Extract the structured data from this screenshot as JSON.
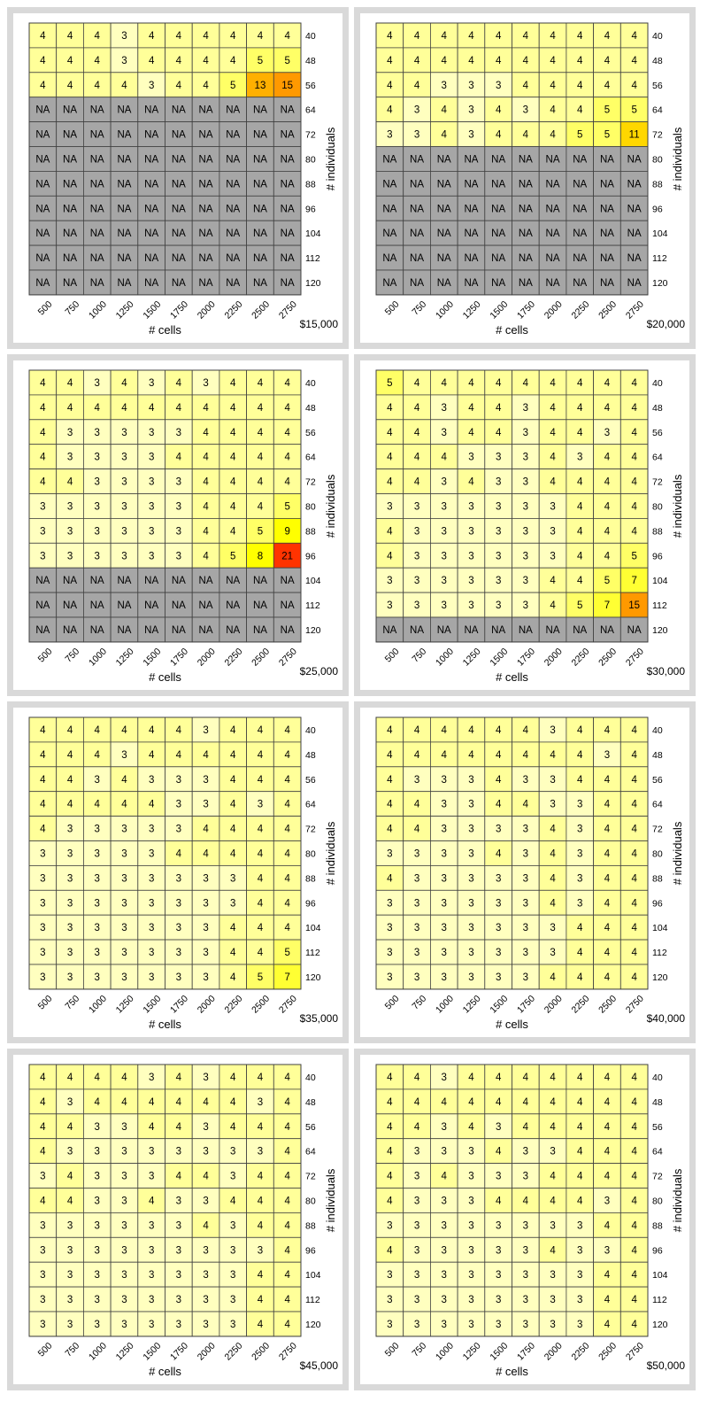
{
  "shared": {
    "x_label": "# cells",
    "y_label": "# individuals",
    "x_ticks": [
      "500",
      "750",
      "1000",
      "1250",
      "1500",
      "1750",
      "2000",
      "2250",
      "2500",
      "2750"
    ],
    "y_ticks": [
      "40",
      "48",
      "56",
      "64",
      "72",
      "80",
      "88",
      "96",
      "104",
      "112",
      "120"
    ],
    "colors": {
      "na": "#a6a6a6",
      "scale_3": "#ffffbf",
      "scale_4": "#ffff99",
      "scale_5": "#ffff66",
      "scale_7": "#ffff33",
      "scale_9": "#ffff00",
      "scale_11": "#ffd700",
      "scale_13": "#ffb000",
      "scale_15": "#ff9900",
      "scale_21": "#ff3300",
      "grid": "#404040"
    }
  },
  "chart_data": [
    {
      "type": "heatmap",
      "budget": "$15,000",
      "rows": [
        [
          "4",
          "4",
          "4",
          "3",
          "4",
          "4",
          "4",
          "4",
          "4",
          "4"
        ],
        [
          "4",
          "4",
          "4",
          "3",
          "4",
          "4",
          "4",
          "4",
          "5",
          "5"
        ],
        [
          "4",
          "4",
          "4",
          "4",
          "3",
          "4",
          "4",
          "5",
          "13",
          "15"
        ],
        [
          "NA",
          "NA",
          "NA",
          "NA",
          "NA",
          "NA",
          "NA",
          "NA",
          "NA",
          "NA"
        ],
        [
          "NA",
          "NA",
          "NA",
          "NA",
          "NA",
          "NA",
          "NA",
          "NA",
          "NA",
          "NA"
        ],
        [
          "NA",
          "NA",
          "NA",
          "NA",
          "NA",
          "NA",
          "NA",
          "NA",
          "NA",
          "NA"
        ],
        [
          "NA",
          "NA",
          "NA",
          "NA",
          "NA",
          "NA",
          "NA",
          "NA",
          "NA",
          "NA"
        ],
        [
          "NA",
          "NA",
          "NA",
          "NA",
          "NA",
          "NA",
          "NA",
          "NA",
          "NA",
          "NA"
        ],
        [
          "NA",
          "NA",
          "NA",
          "NA",
          "NA",
          "NA",
          "NA",
          "NA",
          "NA",
          "NA"
        ],
        [
          "NA",
          "NA",
          "NA",
          "NA",
          "NA",
          "NA",
          "NA",
          "NA",
          "NA",
          "NA"
        ],
        [
          "NA",
          "NA",
          "NA",
          "NA",
          "NA",
          "NA",
          "NA",
          "NA",
          "NA",
          "NA"
        ]
      ]
    },
    {
      "type": "heatmap",
      "budget": "$20,000",
      "rows": [
        [
          "4",
          "4",
          "4",
          "4",
          "4",
          "4",
          "4",
          "4",
          "4",
          "4"
        ],
        [
          "4",
          "4",
          "4",
          "4",
          "4",
          "4",
          "4",
          "4",
          "4",
          "4"
        ],
        [
          "4",
          "4",
          "3",
          "3",
          "3",
          "4",
          "4",
          "4",
          "4",
          "4"
        ],
        [
          "4",
          "3",
          "4",
          "3",
          "4",
          "3",
          "4",
          "4",
          "5",
          "5"
        ],
        [
          "3",
          "3",
          "4",
          "3",
          "4",
          "4",
          "4",
          "5",
          "5",
          "11"
        ],
        [
          "NA",
          "NA",
          "NA",
          "NA",
          "NA",
          "NA",
          "NA",
          "NA",
          "NA",
          "NA"
        ],
        [
          "NA",
          "NA",
          "NA",
          "NA",
          "NA",
          "NA",
          "NA",
          "NA",
          "NA",
          "NA"
        ],
        [
          "NA",
          "NA",
          "NA",
          "NA",
          "NA",
          "NA",
          "NA",
          "NA",
          "NA",
          "NA"
        ],
        [
          "NA",
          "NA",
          "NA",
          "NA",
          "NA",
          "NA",
          "NA",
          "NA",
          "NA",
          "NA"
        ],
        [
          "NA",
          "NA",
          "NA",
          "NA",
          "NA",
          "NA",
          "NA",
          "NA",
          "NA",
          "NA"
        ],
        [
          "NA",
          "NA",
          "NA",
          "NA",
          "NA",
          "NA",
          "NA",
          "NA",
          "NA",
          "NA"
        ]
      ]
    },
    {
      "type": "heatmap",
      "budget": "$25,000",
      "rows": [
        [
          "4",
          "4",
          "3",
          "4",
          "3",
          "4",
          "3",
          "4",
          "4",
          "4"
        ],
        [
          "4",
          "4",
          "4",
          "4",
          "4",
          "4",
          "4",
          "4",
          "4",
          "4"
        ],
        [
          "4",
          "3",
          "3",
          "3",
          "3",
          "3",
          "4",
          "4",
          "4",
          "4"
        ],
        [
          "4",
          "3",
          "3",
          "3",
          "3",
          "4",
          "4",
          "4",
          "4",
          "4"
        ],
        [
          "4",
          "4",
          "3",
          "3",
          "3",
          "3",
          "4",
          "4",
          "4",
          "4"
        ],
        [
          "3",
          "3",
          "3",
          "3",
          "3",
          "3",
          "4",
          "4",
          "4",
          "5"
        ],
        [
          "3",
          "3",
          "3",
          "3",
          "3",
          "3",
          "4",
          "4",
          "5",
          "9"
        ],
        [
          "3",
          "3",
          "3",
          "3",
          "3",
          "3",
          "4",
          "5",
          "8",
          "21"
        ],
        [
          "NA",
          "NA",
          "NA",
          "NA",
          "NA",
          "NA",
          "NA",
          "NA",
          "NA",
          "NA"
        ],
        [
          "NA",
          "NA",
          "NA",
          "NA",
          "NA",
          "NA",
          "NA",
          "NA",
          "NA",
          "NA"
        ],
        [
          "NA",
          "NA",
          "NA",
          "NA",
          "NA",
          "NA",
          "NA",
          "NA",
          "NA",
          "NA"
        ]
      ]
    },
    {
      "type": "heatmap",
      "budget": "$30,000",
      "rows": [
        [
          "5",
          "4",
          "4",
          "4",
          "4",
          "4",
          "4",
          "4",
          "4",
          "4"
        ],
        [
          "4",
          "4",
          "3",
          "4",
          "4",
          "3",
          "4",
          "4",
          "4",
          "4"
        ],
        [
          "4",
          "4",
          "3",
          "4",
          "4",
          "3",
          "4",
          "4",
          "3",
          "4"
        ],
        [
          "4",
          "4",
          "4",
          "3",
          "3",
          "3",
          "4",
          "3",
          "4",
          "4"
        ],
        [
          "4",
          "4",
          "3",
          "4",
          "3",
          "3",
          "4",
          "4",
          "4",
          "4"
        ],
        [
          "3",
          "3",
          "3",
          "3",
          "3",
          "3",
          "3",
          "4",
          "4",
          "4"
        ],
        [
          "4",
          "3",
          "3",
          "3",
          "3",
          "3",
          "3",
          "4",
          "4",
          "4"
        ],
        [
          "4",
          "3",
          "3",
          "3",
          "3",
          "3",
          "3",
          "4",
          "4",
          "5"
        ],
        [
          "3",
          "3",
          "3",
          "3",
          "3",
          "3",
          "4",
          "4",
          "5",
          "7"
        ],
        [
          "3",
          "3",
          "3",
          "3",
          "3",
          "3",
          "4",
          "5",
          "7",
          "15"
        ],
        [
          "NA",
          "NA",
          "NA",
          "NA",
          "NA",
          "NA",
          "NA",
          "NA",
          "NA",
          "NA"
        ]
      ]
    },
    {
      "type": "heatmap",
      "budget": "$35,000",
      "rows": [
        [
          "4",
          "4",
          "4",
          "4",
          "4",
          "4",
          "3",
          "4",
          "4",
          "4"
        ],
        [
          "4",
          "4",
          "4",
          "3",
          "4",
          "4",
          "4",
          "4",
          "4",
          "4"
        ],
        [
          "4",
          "4",
          "3",
          "4",
          "3",
          "3",
          "3",
          "4",
          "4",
          "4"
        ],
        [
          "4",
          "4",
          "4",
          "4",
          "4",
          "3",
          "3",
          "4",
          "3",
          "4"
        ],
        [
          "4",
          "3",
          "3",
          "3",
          "3",
          "3",
          "4",
          "4",
          "4",
          "4"
        ],
        [
          "3",
          "3",
          "3",
          "3",
          "3",
          "4",
          "4",
          "4",
          "4",
          "4"
        ],
        [
          "3",
          "3",
          "3",
          "3",
          "3",
          "3",
          "3",
          "3",
          "4",
          "4"
        ],
        [
          "3",
          "3",
          "3",
          "3",
          "3",
          "3",
          "3",
          "3",
          "4",
          "4"
        ],
        [
          "3",
          "3",
          "3",
          "3",
          "3",
          "3",
          "3",
          "4",
          "4",
          "4"
        ],
        [
          "3",
          "3",
          "3",
          "3",
          "3",
          "3",
          "3",
          "4",
          "4",
          "5"
        ],
        [
          "3",
          "3",
          "3",
          "3",
          "3",
          "3",
          "3",
          "4",
          "5",
          "7"
        ]
      ]
    },
    {
      "type": "heatmap",
      "budget": "$40,000",
      "rows": [
        [
          "4",
          "4",
          "4",
          "4",
          "4",
          "4",
          "3",
          "4",
          "4",
          "4"
        ],
        [
          "4",
          "4",
          "4",
          "4",
          "4",
          "4",
          "4",
          "4",
          "3",
          "4"
        ],
        [
          "4",
          "3",
          "3",
          "3",
          "4",
          "3",
          "3",
          "4",
          "4",
          "4"
        ],
        [
          "4",
          "4",
          "3",
          "3",
          "4",
          "4",
          "3",
          "3",
          "4",
          "4"
        ],
        [
          "4",
          "4",
          "3",
          "3",
          "3",
          "3",
          "4",
          "3",
          "4",
          "4"
        ],
        [
          "3",
          "3",
          "3",
          "3",
          "4",
          "3",
          "4",
          "3",
          "4",
          "4"
        ],
        [
          "4",
          "3",
          "3",
          "3",
          "3",
          "3",
          "4",
          "3",
          "4",
          "4"
        ],
        [
          "3",
          "3",
          "3",
          "3",
          "3",
          "3",
          "4",
          "3",
          "4",
          "4"
        ],
        [
          "3",
          "3",
          "3",
          "3",
          "3",
          "3",
          "3",
          "4",
          "4",
          "4"
        ],
        [
          "3",
          "3",
          "3",
          "3",
          "3",
          "3",
          "3",
          "4",
          "4",
          "4"
        ],
        [
          "3",
          "3",
          "3",
          "3",
          "3",
          "3",
          "4",
          "4",
          "4",
          "4"
        ]
      ]
    },
    {
      "type": "heatmap",
      "budget": "$45,000",
      "rows": [
        [
          "4",
          "4",
          "4",
          "4",
          "3",
          "4",
          "3",
          "4",
          "4",
          "4"
        ],
        [
          "4",
          "3",
          "4",
          "4",
          "4",
          "4",
          "4",
          "4",
          "3",
          "4"
        ],
        [
          "4",
          "4",
          "3",
          "3",
          "4",
          "4",
          "3",
          "4",
          "4",
          "4"
        ],
        [
          "4",
          "3",
          "3",
          "3",
          "3",
          "3",
          "3",
          "3",
          "3",
          "4"
        ],
        [
          "3",
          "4",
          "3",
          "3",
          "3",
          "4",
          "4",
          "3",
          "4",
          "4"
        ],
        [
          "4",
          "4",
          "3",
          "3",
          "4",
          "3",
          "3",
          "4",
          "4",
          "4"
        ],
        [
          "3",
          "3",
          "3",
          "3",
          "3",
          "3",
          "4",
          "3",
          "4",
          "4"
        ],
        [
          "3",
          "3",
          "3",
          "3",
          "3",
          "3",
          "3",
          "3",
          "3",
          "4"
        ],
        [
          "3",
          "3",
          "3",
          "3",
          "3",
          "3",
          "3",
          "3",
          "4",
          "4"
        ],
        [
          "3",
          "3",
          "3",
          "3",
          "3",
          "3",
          "3",
          "3",
          "4",
          "4"
        ],
        [
          "3",
          "3",
          "3",
          "3",
          "3",
          "3",
          "3",
          "3",
          "4",
          "4"
        ]
      ]
    },
    {
      "type": "heatmap",
      "budget": "$50,000",
      "rows": [
        [
          "4",
          "4",
          "3",
          "4",
          "4",
          "4",
          "4",
          "4",
          "4",
          "4"
        ],
        [
          "4",
          "4",
          "4",
          "4",
          "4",
          "4",
          "4",
          "4",
          "4",
          "4"
        ],
        [
          "4",
          "4",
          "3",
          "4",
          "3",
          "4",
          "4",
          "4",
          "4",
          "4"
        ],
        [
          "4",
          "3",
          "3",
          "3",
          "4",
          "3",
          "3",
          "4",
          "4",
          "4"
        ],
        [
          "4",
          "3",
          "4",
          "3",
          "3",
          "3",
          "4",
          "4",
          "4",
          "4"
        ],
        [
          "4",
          "3",
          "3",
          "3",
          "4",
          "4",
          "4",
          "4",
          "3",
          "4"
        ],
        [
          "3",
          "3",
          "3",
          "3",
          "3",
          "3",
          "3",
          "3",
          "4",
          "4"
        ],
        [
          "4",
          "3",
          "3",
          "3",
          "3",
          "3",
          "4",
          "3",
          "3",
          "4"
        ],
        [
          "3",
          "3",
          "3",
          "3",
          "3",
          "3",
          "3",
          "3",
          "4",
          "4"
        ],
        [
          "3",
          "3",
          "3",
          "3",
          "3",
          "3",
          "3",
          "3",
          "4",
          "4"
        ],
        [
          "3",
          "3",
          "3",
          "3",
          "3",
          "3",
          "3",
          "3",
          "4",
          "4"
        ]
      ]
    }
  ]
}
